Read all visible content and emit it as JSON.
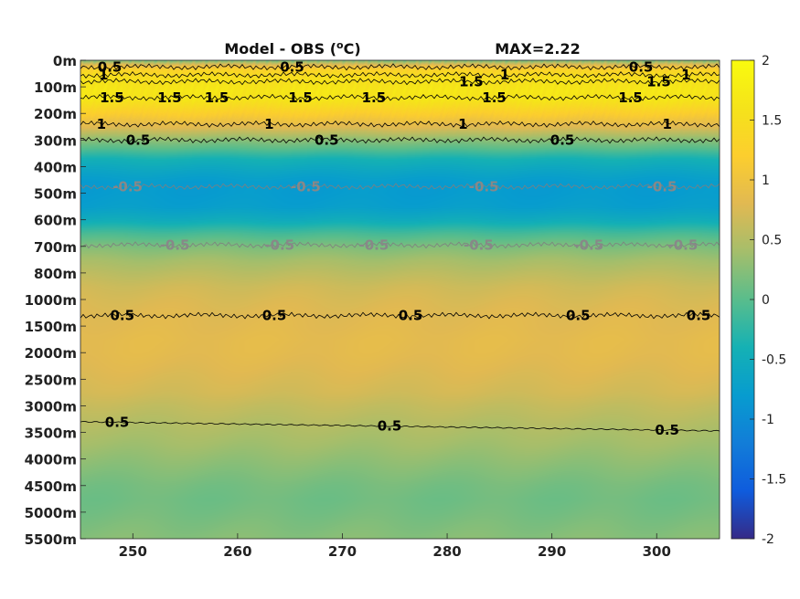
{
  "chart_data": {
    "type": "heatmap",
    "title": "Model - OBS (°C)",
    "title_parts": {
      "prefix": "Model - OBS (",
      "superscript": "o",
      "suffix": "C)"
    },
    "max_annotation": "MAX=2.22",
    "x": {
      "range": [
        245,
        306
      ],
      "ticks": [
        250,
        260,
        270,
        280,
        290,
        300
      ],
      "tick_labels": [
        "250",
        "260",
        "270",
        "280",
        "290",
        "300"
      ]
    },
    "y": {
      "levels": [
        "0m",
        "100m",
        "200m",
        "300m",
        "400m",
        "500m",
        "600m",
        "700m",
        "800m",
        "1000m",
        "1500m",
        "2000m",
        "2500m",
        "3000m",
        "3500m",
        "4000m",
        "4500m",
        "5000m",
        "5500m"
      ]
    },
    "colorbar": {
      "range": [
        -2,
        2
      ],
      "ticks": [
        2,
        1.5,
        1,
        0.5,
        0,
        -0.5,
        -1,
        -1.5,
        -2
      ],
      "tick_labels": [
        "2",
        "1.5",
        "1",
        "0.5",
        "0",
        "-0.5",
        "-1",
        "-1.5",
        "-2"
      ],
      "colormap": "parula"
    },
    "field_profile": {
      "depth_index": [
        0,
        0.15,
        0.35,
        0.6,
        0.9,
        1.15,
        1.5,
        2,
        2.5,
        2.9,
        3.3,
        3.7,
        4.2,
        4.6,
        5,
        5.5,
        6,
        6.5,
        7,
        7.5,
        8,
        8.5,
        9,
        9.5,
        10,
        10.5,
        11,
        11.5,
        12,
        12.5,
        13,
        13.5,
        14,
        14.5,
        15,
        15.5,
        16,
        16.5,
        17,
        18
      ],
      "value": [
        0.2,
        0.8,
        1.3,
        1.5,
        1.6,
        1.65,
        1.6,
        1.2,
        0.8,
        0.35,
        0.0,
        -0.4,
        -0.65,
        -0.8,
        -0.8,
        -0.75,
        -0.5,
        -0.1,
        0.2,
        0.4,
        0.55,
        0.68,
        0.75,
        0.8,
        0.82,
        0.85,
        0.84,
        0.8,
        0.75,
        0.7,
        0.6,
        0.52,
        0.45,
        0.38,
        0.3,
        0.22,
        0.15,
        0.12,
        0.15,
        0.25
      ]
    },
    "contours": [
      {
        "level": "0.5",
        "color": "#000000",
        "depth_index": 0.25,
        "labels_x": [
          247.8,
          265.2,
          298.5
        ]
      },
      {
        "level": "1",
        "color": "#000000",
        "depth_index": 0.55,
        "labels_x": [
          247.2,
          285.5,
          302.8
        ]
      },
      {
        "level": "1.5",
        "color": "#000000",
        "depth_index": 0.8,
        "labels_x": [
          282.3,
          300.2
        ]
      },
      {
        "level": "1.5",
        "color": "#000000",
        "depth_index": 1.4,
        "labels_x": [
          248.0,
          253.5,
          258.0,
          266.0,
          273.0,
          284.5,
          297.5
        ]
      },
      {
        "level": "1",
        "color": "#000000",
        "depth_index": 2.4,
        "labels_x": [
          247.0,
          263.0,
          281.5,
          301.0
        ]
      },
      {
        "level": "0.5",
        "color": "#000000",
        "depth_index": 3.0,
        "labels_x": [
          250.5,
          268.5,
          291.0
        ]
      },
      {
        "level": "-0.5",
        "color": "#7f7f7f",
        "depth_index": 4.75,
        "labels_x": [
          249.5,
          266.5,
          283.5,
          300.5
        ]
      },
      {
        "level": "-0.5",
        "color": "#7f7f7f",
        "depth_index": 6.95,
        "labels_x": [
          254.0,
          264.0,
          273.0,
          283.0,
          293.5,
          302.5
        ]
      },
      {
        "level": "0.5",
        "color": "#000000",
        "depth_index": 9.6,
        "labels_x": [
          249.0,
          263.5,
          276.5,
          292.5,
          304.0
        ]
      },
      {
        "level": "0.5",
        "color": "#000000",
        "depth_index": 13.6,
        "labels_x": [
          248.5,
          274.5,
          301.0
        ]
      }
    ]
  }
}
